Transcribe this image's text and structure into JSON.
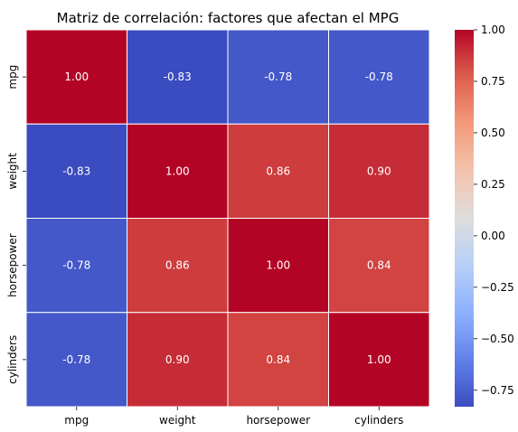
{
  "chart_data": {
    "type": "heatmap",
    "title": "Matriz de correlación: factores que afectan el MPG",
    "xlabel": "",
    "ylabel": "",
    "x_categories": [
      "mpg",
      "weight",
      "horsepower",
      "cylinders"
    ],
    "y_categories": [
      "mpg",
      "weight",
      "horsepower",
      "cylinders"
    ],
    "values": [
      [
        1.0,
        -0.83,
        -0.78,
        -0.78
      ],
      [
        -0.83,
        1.0,
        0.86,
        0.9
      ],
      [
        -0.78,
        0.86,
        1.0,
        0.84
      ],
      [
        -0.78,
        0.9,
        0.84,
        1.0
      ]
    ],
    "cell_labels": [
      [
        "1.00",
        "-0.83",
        "-0.78",
        "-0.78"
      ],
      [
        "-0.83",
        "1.00",
        "0.86",
        "0.90"
      ],
      [
        "-0.78",
        "0.86",
        "1.00",
        "0.84"
      ],
      [
        "-0.78",
        "0.90",
        "0.84",
        "1.00"
      ]
    ],
    "colormap": "coolwarm",
    "colorbar": {
      "range": [
        -0.83,
        1.0
      ],
      "ticks": [
        1.0,
        0.75,
        0.5,
        0.25,
        0.0,
        -0.25,
        -0.5,
        -0.75
      ],
      "tick_labels": [
        "1.00",
        "0.75",
        "0.50",
        "0.25",
        "0.00",
        "−0.25",
        "−0.50",
        "−0.75"
      ]
    },
    "grid": true,
    "legend": "colorbar-right"
  }
}
